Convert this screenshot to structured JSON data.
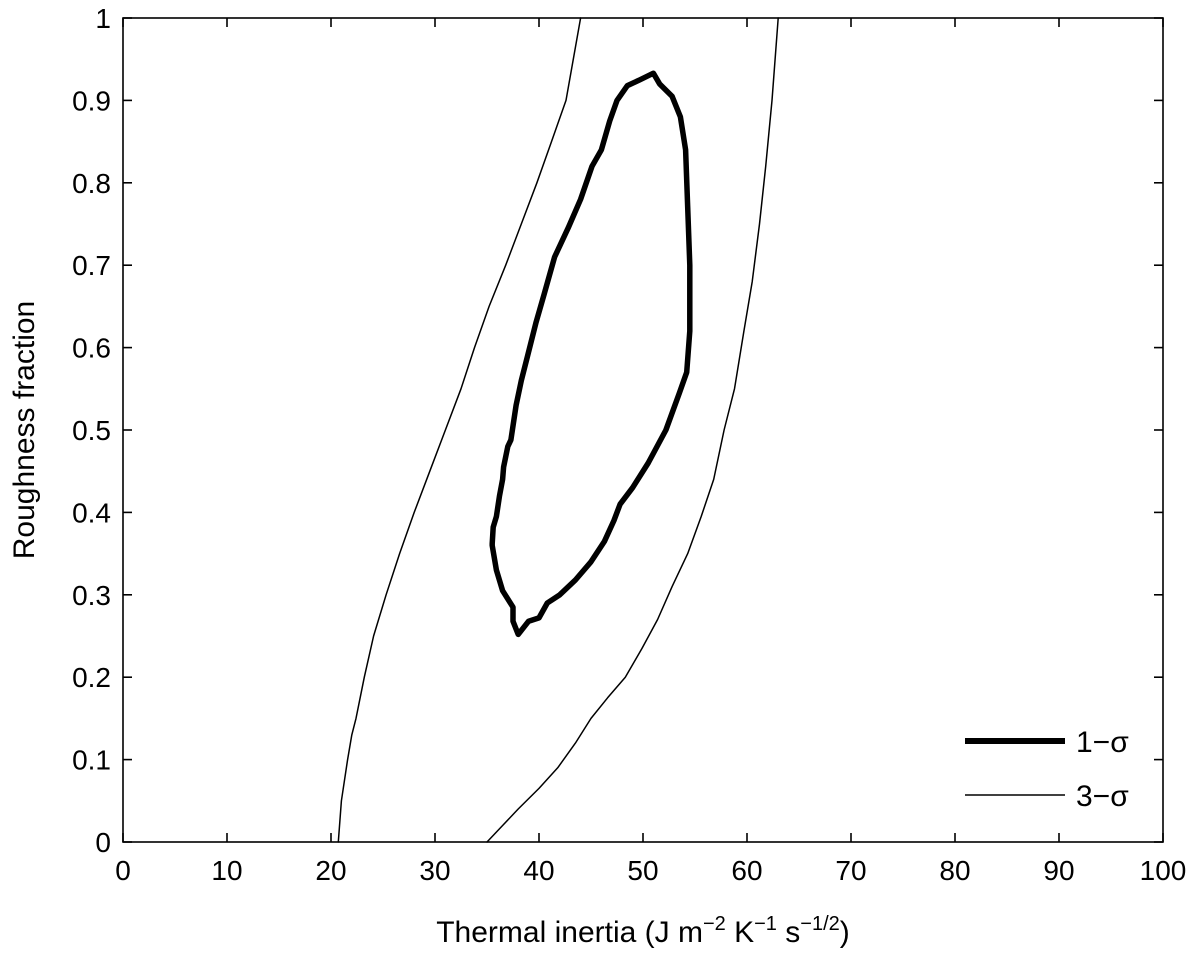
{
  "chart_data": {
    "type": "line",
    "title": "",
    "xlabel": {
      "base": "Thermal inertia (J m",
      "exp1": "−2",
      "mid1": " K",
      "exp2": "−1",
      "mid2": " s",
      "exp3": "−1/2",
      "end": ")"
    },
    "ylabel": "Roughness fraction",
    "xlim": [
      0,
      100
    ],
    "ylim": [
      0,
      1
    ],
    "xticks": [
      0,
      10,
      20,
      30,
      40,
      50,
      60,
      70,
      80,
      90,
      100
    ],
    "yticks": [
      0,
      0.1,
      0.2,
      0.3,
      0.4,
      0.5,
      0.6,
      0.7,
      0.8,
      0.9,
      1
    ],
    "xtick_labels": [
      "0",
      "10",
      "20",
      "30",
      "40",
      "50",
      "60",
      "70",
      "80",
      "90",
      "100"
    ],
    "ytick_labels": [
      "0",
      "0.1",
      "0.2",
      "0.3",
      "0.4",
      "0.5",
      "0.6",
      "0.7",
      "0.8",
      "0.9",
      "1"
    ],
    "grid": false,
    "legend_position": "bottom-right",
    "series": [
      {
        "name": "1−σ",
        "style": "thick",
        "closed": true,
        "x": [
          38.0,
          39.0,
          40.0,
          40.8,
          42.0,
          43.5,
          45.0,
          46.3,
          47.2,
          47.8,
          49.0,
          50.5,
          52.2,
          53.5,
          54.2,
          54.5,
          54.5,
          54.3,
          54.1,
          53.6,
          52.8,
          51.6,
          51.0,
          49.7,
          48.5,
          47.5,
          46.8,
          46.0,
          45.1,
          44.0,
          42.8,
          41.5,
          40.5,
          39.7,
          38.9,
          38.3,
          37.8,
          37.3,
          37.0,
          36.6,
          36.5,
          36.2,
          35.9,
          35.6,
          35.5,
          35.5,
          35.9,
          36.5,
          37.5,
          37.5
        ],
        "y": [
          0.252,
          0.268,
          0.272,
          0.29,
          0.3,
          0.318,
          0.34,
          0.365,
          0.39,
          0.41,
          0.43,
          0.46,
          0.5,
          0.545,
          0.57,
          0.62,
          0.7,
          0.77,
          0.84,
          0.88,
          0.905,
          0.92,
          0.933,
          0.925,
          0.918,
          0.9,
          0.875,
          0.84,
          0.82,
          0.78,
          0.745,
          0.71,
          0.665,
          0.63,
          0.59,
          0.56,
          0.53,
          0.488,
          0.48,
          0.455,
          0.44,
          0.42,
          0.395,
          0.382,
          0.362,
          0.36,
          0.33,
          0.305,
          0.285,
          0.268
        ]
      },
      {
        "name": "3−σ",
        "style": "thin",
        "closed": false,
        "segments": [
          {
            "x": [
              20.7,
              21.0,
              21.6,
              22.0,
              22.4,
              23.2,
              24.1,
              25.3,
              26.6,
              28.0,
              29.5,
              31.0,
              32.5,
              33.8,
              35.2,
              36.8,
              38.3,
              39.8,
              41.2,
              42.6,
              44.0
            ],
            "y": [
              0.0,
              0.05,
              0.1,
              0.13,
              0.15,
              0.2,
              0.25,
              0.3,
              0.35,
              0.4,
              0.45,
              0.5,
              0.55,
              0.6,
              0.65,
              0.7,
              0.75,
              0.8,
              0.85,
              0.9,
              1.0
            ]
          },
          {
            "x": [
              35.0,
              36.5,
              38.0,
              40.0,
              41.8,
              43.5,
              45.0,
              46.6,
              48.3,
              49.9,
              51.4,
              52.8,
              54.3,
              55.6,
              56.8,
              57.8,
              58.8,
              59.7,
              60.5,
              61.2,
              61.8,
              62.4,
              63.0
            ],
            "y": [
              0.0,
              0.02,
              0.04,
              0.065,
              0.09,
              0.12,
              0.15,
              0.175,
              0.2,
              0.235,
              0.27,
              0.31,
              0.35,
              0.395,
              0.44,
              0.5,
              0.55,
              0.62,
              0.68,
              0.75,
              0.82,
              0.9,
              1.0
            ]
          }
        ]
      }
    ]
  }
}
